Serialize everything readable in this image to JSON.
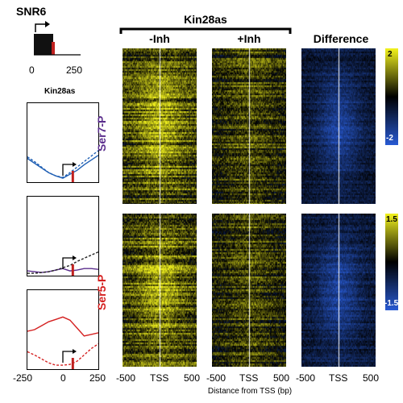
{
  "gene": {
    "name": "SNR6",
    "axis_ticks": [
      "0",
      "250"
    ]
  },
  "kin28_small_label": "Kin28as",
  "line_plots": {
    "x_ticks": [
      "-250",
      "0",
      "250"
    ],
    "panels": [
      {
        "id": "ser7",
        "solid_color": "#1f5fb4",
        "dashed_color": "#1f5fb4"
      },
      {
        "id": "purple",
        "solid_color": "#5a2d8c",
        "dashed_color": "#222222"
      },
      {
        "id": "ser5",
        "solid_color": "#d42020",
        "dashed_color": "#d42020"
      }
    ]
  },
  "heatmaps": {
    "group_label": "Kin28as",
    "columns": [
      "-Inh",
      "+Inh",
      "Difference"
    ],
    "rows": [
      "Ser7-P",
      "Ser5-P"
    ],
    "row_label_colors": [
      "#5a2d8c",
      "#d42020"
    ],
    "x_ticks": [
      "-500",
      "TSS",
      "500"
    ],
    "x_axis_label": "Distance from TSS (bp)"
  },
  "colorbars": [
    {
      "max": "2",
      "min": "-2"
    },
    {
      "max": "1.5",
      "min": "-1.5"
    }
  ],
  "chart_data": {
    "type": "heatmap",
    "title": "Kin28as",
    "xlabel": "Distance from TSS (bp)",
    "x_range": [
      -500,
      500
    ],
    "columns": [
      "-Inh",
      "+Inh",
      "Difference"
    ],
    "rows": [
      "Ser7-P",
      "Ser5-P"
    ],
    "color_scales": [
      {
        "row": "Ser7-P",
        "min": -2,
        "max": 2,
        "colors": [
          "#2a5fd0",
          "#000000",
          "#f0f020"
        ]
      },
      {
        "row": "Ser5-P",
        "min": -1.5,
        "max": 1.5,
        "colors": [
          "#2a5fd0",
          "#000000",
          "#f0f020"
        ]
      }
    ],
    "profile_plots": {
      "x_range": [
        -250,
        250
      ],
      "x_ticks": [
        -250,
        0,
        250
      ],
      "series": [
        {
          "panel": 1,
          "line": "solid",
          "x": [
            -250,
            -200,
            -150,
            -100,
            -50,
            0,
            50,
            100,
            150,
            200,
            250
          ],
          "y": [
            0.3,
            0.24,
            0.18,
            0.12,
            0.08,
            0.05,
            0.1,
            0.15,
            0.22,
            0.28,
            0.34
          ]
        },
        {
          "panel": 1,
          "line": "dashed",
          "x": [
            -250,
            -200,
            -150,
            -100,
            -50,
            0,
            50,
            100,
            150,
            200,
            250
          ],
          "y": [
            0.32,
            0.26,
            0.19,
            0.12,
            0.08,
            0.06,
            0.12,
            0.19,
            0.26,
            0.33,
            0.4
          ]
        },
        {
          "panel": 2,
          "line": "solid",
          "x": [
            -250,
            -200,
            -150,
            -100,
            -50,
            0,
            50,
            100,
            150,
            200,
            250
          ],
          "y": [
            0.06,
            0.05,
            0.04,
            0.05,
            0.07,
            0.09,
            0.06,
            0.07,
            0.09,
            0.09,
            0.08
          ]
        },
        {
          "panel": 2,
          "line": "dashed",
          "x": [
            -250,
            -200,
            -150,
            -100,
            -50,
            0,
            50,
            100,
            150,
            200,
            250
          ],
          "y": [
            0.03,
            0.03,
            0.04,
            0.05,
            0.07,
            0.1,
            0.13,
            0.18,
            0.22,
            0.26,
            0.3
          ]
        },
        {
          "panel": 3,
          "line": "solid",
          "x": [
            -250,
            -200,
            -150,
            -100,
            -50,
            0,
            50,
            100,
            150,
            200,
            250
          ],
          "y": [
            0.48,
            0.5,
            0.55,
            0.6,
            0.63,
            0.66,
            0.62,
            0.52,
            0.42,
            0.44,
            0.46
          ]
        },
        {
          "panel": 3,
          "line": "dashed",
          "x": [
            -250,
            -200,
            -150,
            -100,
            -50,
            0,
            50,
            100,
            150,
            200,
            250
          ],
          "y": [
            0.22,
            0.18,
            0.13,
            0.08,
            0.05,
            0.05,
            0.06,
            0.1,
            0.18,
            0.26,
            0.32
          ]
        }
      ]
    }
  }
}
